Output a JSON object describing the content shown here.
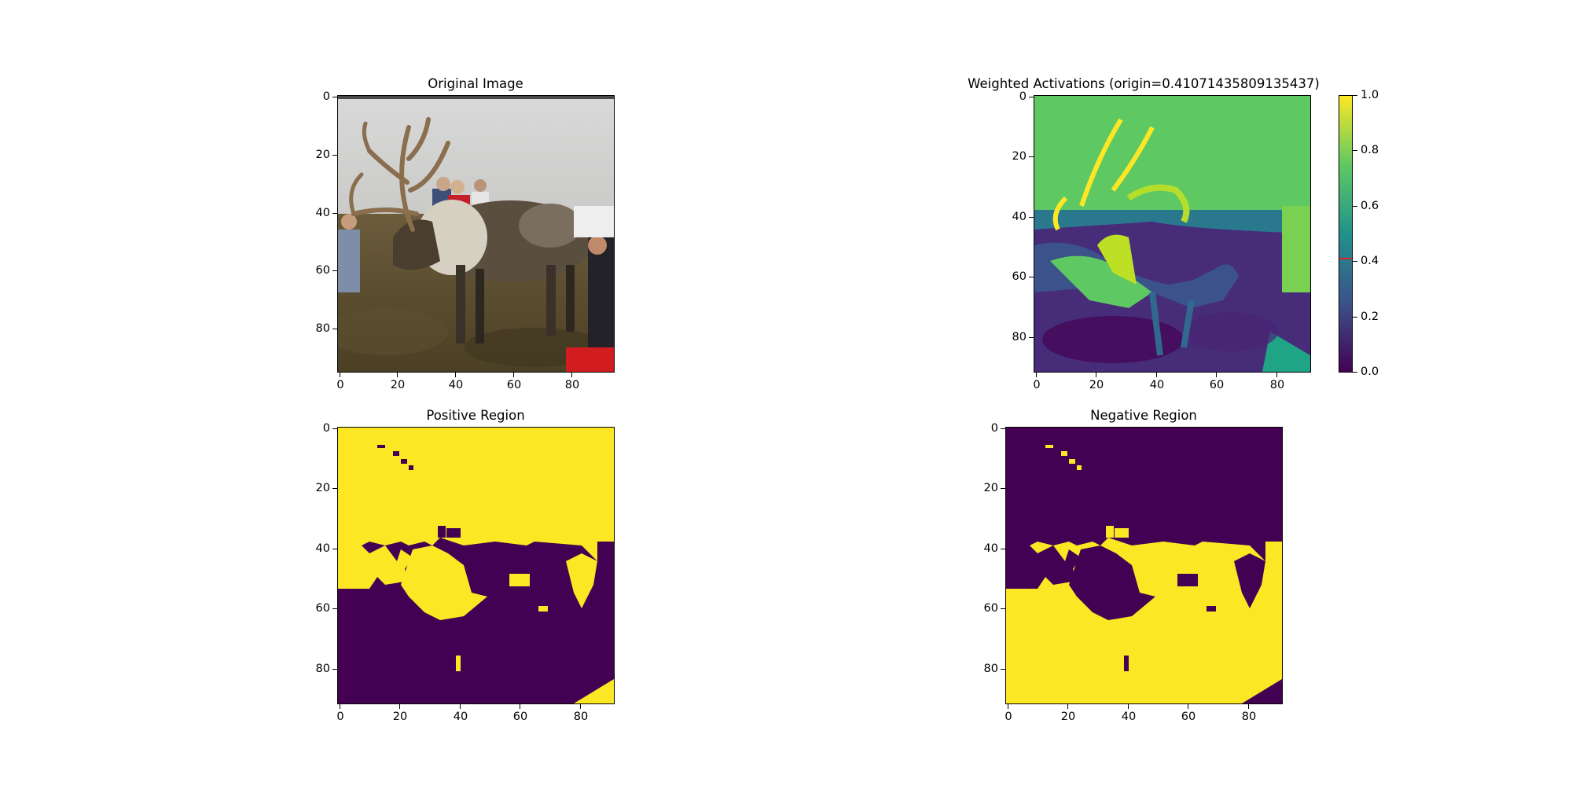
{
  "chart_data": [
    {
      "type": "image",
      "title": "Original Image",
      "xticks": [
        0,
        20,
        40,
        60,
        80
      ],
      "yticks": [
        0,
        20,
        40,
        60,
        80
      ],
      "xlim": [
        0,
        95
      ],
      "ylim": [
        95,
        0
      ],
      "content": "photograph of a reindeer with antlers standing among people on grassland"
    },
    {
      "type": "heatmap",
      "title": "Weighted Activations (origin=0.41071435809135437)",
      "colormap": "viridis",
      "xticks": [
        0,
        20,
        40,
        60,
        80
      ],
      "yticks": [
        0,
        20,
        40,
        60,
        80
      ],
      "xlim": [
        0,
        91
      ],
      "ylim": [
        91,
        0
      ],
      "colorbar": {
        "ticks": [
          "0.0",
          "0.2",
          "0.4",
          "0.6",
          "0.8",
          "1.0"
        ],
        "range": [
          0,
          1
        ],
        "origin_marker": 0.41071435809135437,
        "origin_color": "#d62728"
      }
    },
    {
      "type": "heatmap",
      "title": "Positive Region",
      "colormap": "viridis-binary",
      "xticks": [
        0,
        20,
        40,
        60,
        80
      ],
      "yticks": [
        0,
        20,
        40,
        60,
        80
      ],
      "xlim": [
        0,
        91
      ],
      "ylim": [
        91,
        0
      ]
    },
    {
      "type": "heatmap",
      "title": "Negative Region",
      "colormap": "viridis-binary",
      "xticks": [
        0,
        20,
        40,
        60,
        80
      ],
      "yticks": [
        0,
        20,
        40,
        60,
        80
      ],
      "xlim": [
        0,
        91
      ],
      "ylim": [
        91,
        0
      ]
    }
  ],
  "colors": {
    "yellow": "#fde725",
    "purple": "#440154",
    "green": "#5ec962",
    "blue": "#3b528b",
    "teal": "#21918c"
  }
}
